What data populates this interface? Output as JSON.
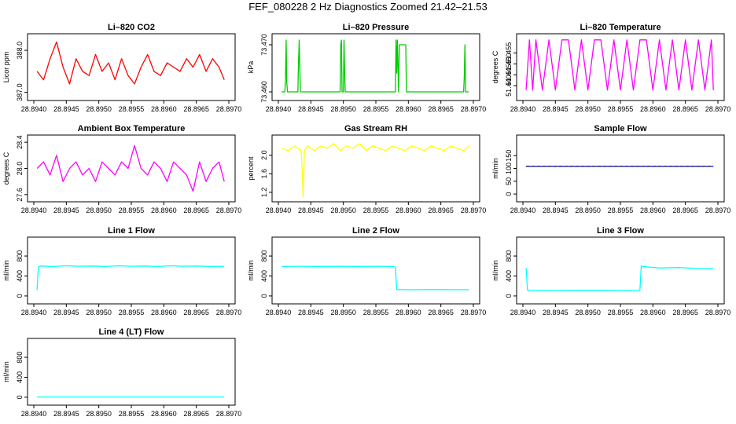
{
  "main_title": "FEF_080228  2 Hz Diagnostics Zoomed 21.42–21.53",
  "chart_data": [
    {
      "id": "co2",
      "type": "line",
      "title": "Li–820 CO2",
      "ylabel": "Licor ppm",
      "color": "#ff0000",
      "xlim": [
        28.894,
        28.897
      ],
      "ylim": [
        386.9,
        388.3
      ],
      "yticks": [
        "387.0",
        "388.0"
      ],
      "ytick_values": [
        387.0,
        388.0
      ],
      "xticks": [
        "28.8940",
        "28.8945",
        "28.8950",
        "28.8955",
        "28.8960",
        "28.8965",
        "28.8970"
      ],
      "x": [
        28.89405,
        28.89415,
        28.89425,
        28.89435,
        28.89445,
        28.89455,
        28.89465,
        28.89475,
        28.89485,
        28.89495,
        28.89505,
        28.89515,
        28.89525,
        28.89535,
        28.89545,
        28.89555,
        28.89565,
        28.89575,
        28.89585,
        28.89595,
        28.89605,
        28.89615,
        28.89625,
        28.89635,
        28.89645,
        28.89655,
        28.89665,
        28.89675,
        28.89685,
        28.89693
      ],
      "y": [
        387.5,
        387.3,
        387.8,
        388.2,
        387.6,
        387.2,
        387.8,
        387.5,
        387.4,
        387.9,
        387.5,
        387.7,
        387.3,
        387.8,
        387.4,
        387.2,
        387.6,
        387.9,
        387.5,
        387.4,
        387.7,
        387.6,
        387.5,
        387.8,
        387.6,
        387.9,
        387.5,
        387.8,
        387.6,
        387.3
      ]
    },
    {
      "id": "pressure",
      "type": "line",
      "title": "Li–820 Pressure",
      "ylabel": "kPa",
      "color": "#00cc00",
      "xlim": [
        28.894,
        28.897
      ],
      "ylim": [
        73.459,
        73.4715
      ],
      "yticks": [
        "73.460",
        "73.470"
      ],
      "ytick_values": [
        73.46,
        73.47
      ],
      "xticks": [
        "28.8940",
        "28.8945",
        "28.8950",
        "28.8955",
        "28.8960",
        "28.8965",
        "28.8970"
      ],
      "x": [
        28.89405,
        28.8941,
        28.89411,
        28.89412,
        28.89413,
        28.89414,
        28.8942,
        28.8943,
        28.89431,
        28.89432,
        28.89433,
        28.89434,
        28.8944,
        28.89495,
        28.89496,
        28.89497,
        28.89498,
        28.895,
        28.89501,
        28.89502,
        28.89503,
        28.8951,
        28.8958,
        28.89581,
        28.89582,
        28.89583,
        28.89585,
        28.89586,
        28.89595,
        28.89596,
        28.89597,
        28.89598,
        28.89605,
        28.89685,
        28.89686,
        28.89687,
        28.89688,
        28.89693
      ],
      "y": [
        73.46,
        73.46,
        73.463,
        73.471,
        73.462,
        73.46,
        73.46,
        73.46,
        73.466,
        73.471,
        73.465,
        73.46,
        73.46,
        73.46,
        73.47,
        73.471,
        73.46,
        73.46,
        73.471,
        73.464,
        73.46,
        73.46,
        73.46,
        73.471,
        73.464,
        73.471,
        73.46,
        73.47,
        73.47,
        73.47,
        73.46,
        73.46,
        73.46,
        73.46,
        73.463,
        73.47,
        73.46,
        73.46
      ]
    },
    {
      "id": "temp",
      "type": "line",
      "title": "Li–820 Temperature",
      "ylabel": "degrees C",
      "color": "#ff00ff",
      "xlim": [
        28.894,
        28.897
      ],
      "ylim": [
        51.435,
        51.462
      ],
      "yticks": [
        "51.440",
        "51.445",
        "51.450",
        "51.455"
      ],
      "ytick_values": [
        51.44,
        51.445,
        51.45,
        51.455
      ],
      "xticks": [
        "28.8940",
        "28.8945",
        "28.8950",
        "28.8955",
        "28.8960",
        "28.8965",
        "28.8970"
      ],
      "x": [
        28.89405,
        28.8941,
        28.89415,
        28.8942,
        28.8943,
        28.8944,
        28.8945,
        28.8946,
        28.8947,
        28.8948,
        28.8949,
        28.895,
        28.8951,
        28.8952,
        28.8953,
        28.8954,
        28.8955,
        28.8956,
        28.8957,
        28.8958,
        28.8959,
        28.896,
        28.8961,
        28.8962,
        28.8963,
        28.8964,
        28.8965,
        28.8966,
        28.8967,
        28.8968,
        28.8969,
        28.89693
      ],
      "y": [
        51.438,
        51.461,
        51.438,
        51.461,
        51.438,
        51.461,
        51.438,
        51.461,
        51.461,
        51.438,
        51.461,
        51.438,
        51.461,
        51.461,
        51.438,
        51.461,
        51.438,
        51.461,
        51.438,
        51.461,
        51.461,
        51.438,
        51.461,
        51.438,
        51.461,
        51.438,
        51.461,
        51.438,
        51.461,
        51.438,
        51.461,
        51.438
      ]
    },
    {
      "id": "ambient",
      "type": "line",
      "title": "Ambient Box Temperature",
      "ylabel": "degrees C",
      "color": "#ff00ff",
      "xlim": [
        28.894,
        28.897
      ],
      "ylim": [
        27.55,
        28.45
      ],
      "yticks": [
        "27.6",
        "28.0",
        "28.4"
      ],
      "ytick_values": [
        27.6,
        28.0,
        28.4
      ],
      "xticks": [
        "28.8940",
        "28.8945",
        "28.8950",
        "28.8955",
        "28.8960",
        "28.8965",
        "28.8970"
      ],
      "x": [
        28.89405,
        28.89415,
        28.89425,
        28.89435,
        28.89445,
        28.89455,
        28.89465,
        28.89475,
        28.89485,
        28.89495,
        28.89505,
        28.89515,
        28.89525,
        28.89535,
        28.89545,
        28.89555,
        28.89565,
        28.89575,
        28.89585,
        28.89595,
        28.89605,
        28.89615,
        28.89625,
        28.89635,
        28.89645,
        28.89655,
        28.89665,
        28.89675,
        28.89685,
        28.89693
      ],
      "y": [
        28.0,
        28.1,
        27.9,
        28.2,
        27.8,
        28.0,
        28.1,
        27.9,
        28.0,
        27.8,
        28.1,
        28.0,
        27.9,
        28.1,
        28.0,
        28.35,
        28.0,
        27.9,
        28.1,
        28.0,
        27.8,
        28.1,
        28.0,
        27.9,
        27.65,
        28.1,
        27.8,
        28.0,
        28.1,
        27.8
      ]
    },
    {
      "id": "rh",
      "type": "line",
      "title": "Gas Stream RH",
      "ylabel": "percent",
      "color": "#ffff00",
      "xlim": [
        28.894,
        28.897
      ],
      "ylim": [
        1.08,
        2.35
      ],
      "yticks": [
        "1.2",
        "1.6",
        "2.0"
      ],
      "ytick_values": [
        1.2,
        1.6,
        2.0
      ],
      "xticks": [
        "28.8940",
        "28.8945",
        "28.8950",
        "28.8955",
        "28.8960",
        "28.8965",
        "28.8970"
      ],
      "x": [
        28.89405,
        28.89415,
        28.89425,
        28.89435,
        28.89437,
        28.89438,
        28.8944,
        28.89445,
        28.89455,
        28.89465,
        28.89475,
        28.89485,
        28.89495,
        28.89505,
        28.89515,
        28.89525,
        28.89535,
        28.89545,
        28.89555,
        28.89565,
        28.89575,
        28.89585,
        28.89595,
        28.89605,
        28.89615,
        28.89625,
        28.89635,
        28.89645,
        28.89655,
        28.89665,
        28.89675,
        28.89685,
        28.89693
      ],
      "y": [
        2.15,
        2.1,
        2.2,
        2.1,
        1.6,
        1.1,
        2.1,
        2.2,
        2.1,
        2.2,
        2.15,
        2.25,
        2.1,
        2.2,
        2.15,
        2.25,
        2.1,
        2.2,
        2.15,
        2.1,
        2.2,
        2.15,
        2.1,
        2.2,
        2.15,
        2.1,
        2.2,
        2.15,
        2.1,
        2.2,
        2.15,
        2.1,
        2.2
      ]
    },
    {
      "id": "sample",
      "type": "line",
      "title": "Sample Flow",
      "ylabel": "ml/min",
      "color": "#0000ff",
      "xlim": [
        28.894,
        28.897
      ],
      "ylim": [
        -15,
        215
      ],
      "yticks": [
        "0",
        "50",
        "100",
        "150"
      ],
      "ytick_values": [
        0,
        50,
        100,
        150
      ],
      "xticks": [
        "28.8940",
        "28.8945",
        "28.8950",
        "28.8955",
        "28.8960",
        "28.8965",
        "28.8970"
      ],
      "x": [
        28.89405,
        28.89693
      ],
      "y": [
        108,
        108
      ]
    },
    {
      "id": "line1",
      "type": "line",
      "title": "Line 1 Flow",
      "ylabel": "ml/min",
      "color": "#00ffff",
      "xlim": [
        28.894,
        28.897
      ],
      "ylim": [
        -80,
        1100
      ],
      "yticks": [
        "0",
        "400",
        "800"
      ],
      "ytick_values": [
        0,
        400,
        800
      ],
      "xticks": [
        "28.8940",
        "28.8945",
        "28.8950",
        "28.8955",
        "28.8960",
        "28.8965",
        "28.8970"
      ],
      "x": [
        28.89405,
        28.89407,
        28.8941,
        28.8943,
        28.8945,
        28.8947,
        28.8949,
        28.8951,
        28.8953,
        28.8955,
        28.8957,
        28.8959,
        28.8961,
        28.8963,
        28.8965,
        28.8967,
        28.89693
      ],
      "y": [
        120,
        580,
        600,
        590,
        605,
        595,
        600,
        590,
        605,
        595,
        600,
        590,
        605,
        595,
        600,
        590,
        595
      ]
    },
    {
      "id": "line2",
      "type": "line",
      "title": "Line 2 Flow",
      "ylabel": "ml/min",
      "color": "#00ffff",
      "xlim": [
        28.894,
        28.897
      ],
      "ylim": [
        -80,
        1100
      ],
      "yticks": [
        "0",
        "400",
        "800"
      ],
      "ytick_values": [
        0,
        400,
        800
      ],
      "xticks": [
        "28.8940",
        "28.8945",
        "28.8950",
        "28.8955",
        "28.8960",
        "28.8965",
        "28.8970"
      ],
      "x": [
        28.89405,
        28.8943,
        28.8946,
        28.8949,
        28.8952,
        28.8955,
        28.89575,
        28.8958,
        28.89582,
        28.896,
        28.8964,
        28.89693
      ],
      "y": [
        590,
        595,
        590,
        595,
        590,
        595,
        590,
        580,
        130,
        125,
        128,
        125
      ]
    },
    {
      "id": "line3",
      "type": "line",
      "title": "Line 3 Flow",
      "ylabel": "ml/min",
      "color": "#00ffff",
      "xlim": [
        28.894,
        28.897
      ],
      "ylim": [
        -80,
        1100
      ],
      "yticks": [
        "0",
        "400",
        "800"
      ],
      "ytick_values": [
        0,
        400,
        800
      ],
      "xticks": [
        "28.8940",
        "28.8945",
        "28.8950",
        "28.8955",
        "28.8960",
        "28.8965",
        "28.8970"
      ],
      "x": [
        28.89405,
        28.89407,
        28.8941,
        28.8945,
        28.895,
        28.8955,
        28.8958,
        28.89582,
        28.89585,
        28.8961,
        28.8964,
        28.8967,
        28.89693
      ],
      "y": [
        560,
        120,
        115,
        110,
        112,
        110,
        115,
        600,
        590,
        560,
        570,
        550,
        555
      ]
    },
    {
      "id": "line4",
      "type": "line",
      "title": "Line 4 (LT) Flow",
      "ylabel": "ml/min",
      "color": "#00ffff",
      "xlim": [
        28.894,
        28.897
      ],
      "ylim": [
        -80,
        1100
      ],
      "yticks": [
        "0",
        "400",
        "800"
      ],
      "ytick_values": [
        0,
        400,
        800
      ],
      "xticks": [
        "28.8940",
        "28.8945",
        "28.8950",
        "28.8955",
        "28.8960",
        "28.8965",
        "28.8970"
      ],
      "x": [
        28.89405,
        28.89693
      ],
      "y": [
        5,
        5
      ]
    }
  ]
}
